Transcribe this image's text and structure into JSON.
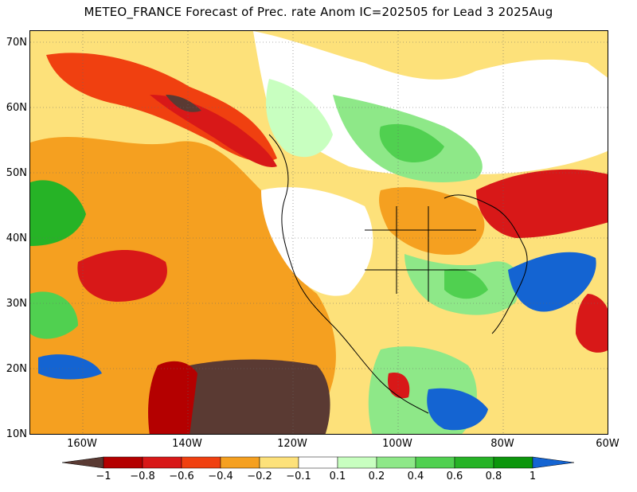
{
  "title": "METEO_FRANCE Forecast of Prec. rate Anom IC=202505 for Lead 3 2025Aug",
  "lat_labels": [
    "70N",
    "60N",
    "50N",
    "40N",
    "30N",
    "20N",
    "10N"
  ],
  "lon_labels": [
    "160W",
    "140W",
    "120W",
    "100W",
    "80W",
    "60W"
  ],
  "colorbar": {
    "labels": [
      "−1",
      "−0.8",
      "−0.6",
      "−0.4",
      "−0.2",
      "−0.1",
      "0.1",
      "0.2",
      "0.4",
      "0.6",
      "0.8",
      "1"
    ],
    "colors": [
      "#5a3a33",
      "#b40000",
      "#d81818",
      "#f04010",
      "#f5a020",
      "#fde17a",
      "#ffffff",
      "#c8ffc0",
      "#8ee888",
      "#50d050",
      "#26b326",
      "#0c960c",
      "#1464d2"
    ]
  },
  "map": {
    "extent": {
      "lon_min": -170,
      "lon_max": -60,
      "lat_min": 10,
      "lat_max": 72
    },
    "gridlines": "dotted"
  }
}
